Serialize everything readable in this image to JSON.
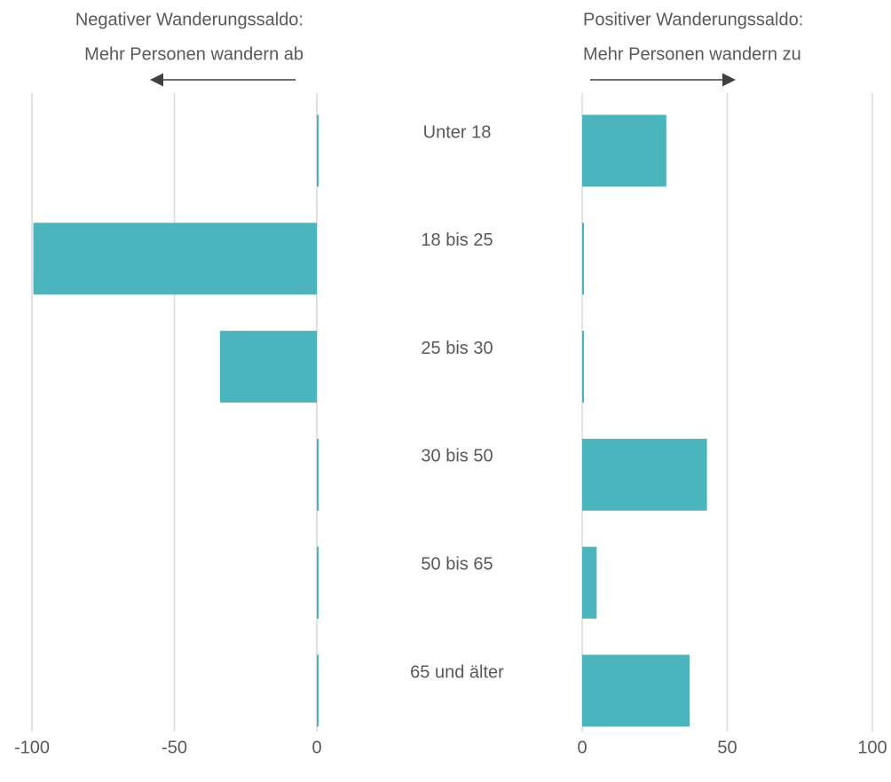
{
  "chart_data": {
    "type": "bar",
    "orientation": "horizontal",
    "color": "#4ab5bd",
    "grid": true,
    "categories": [
      "Unter 18",
      "18 bis 25",
      "25 bis 30",
      "30 bis 50",
      "50 bis 65",
      "65 und älter"
    ],
    "panels": [
      {
        "annotation": [
          "Negativer Wanderungssaldo:",
          "Mehr Personen wandern ab"
        ],
        "xlim": [
          -100,
          0
        ],
        "xticks": [
          -100,
          -50,
          0
        ],
        "values": [
          0,
          -99.5,
          -34,
          0,
          0,
          0
        ]
      },
      {
        "annotation": [
          "Positiver Wanderungssaldo:",
          "Mehr Personen wandern zu"
        ],
        "xlim": [
          0,
          100
        ],
        "xticks": [
          0,
          50,
          100
        ],
        "values": [
          29,
          0,
          0,
          43,
          5,
          37
        ]
      }
    ]
  }
}
